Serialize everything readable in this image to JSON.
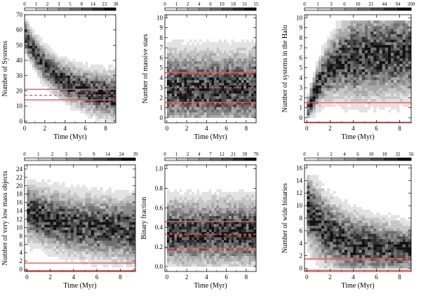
{
  "figure": {
    "type": "heatmap-panels",
    "rows": 2,
    "cols": 3
  },
  "chart_data": [
    {
      "type": "heatmap",
      "xlabel": "Time (Myr)",
      "ylabel": "Number of Systems",
      "xlim": [
        0,
        9
      ],
      "ylim": [
        -1,
        70
      ],
      "xticks": [
        "0",
        "2",
        "4",
        "6",
        "8"
      ],
      "yticks": [
        "0",
        "10",
        "20",
        "30",
        "40",
        "50",
        "60",
        "70"
      ],
      "ytick_values": [
        0,
        10,
        20,
        30,
        40,
        50,
        60,
        70
      ],
      "colorbar_ticks": [
        "0",
        "1",
        "2",
        "3",
        "5",
        "8",
        "14",
        "23",
        "38"
      ],
      "ref_lines": [
        {
          "y": 21,
          "style": "solid"
        },
        {
          "y": 17,
          "style": "dashed"
        },
        {
          "y": 14,
          "style": "solid"
        }
      ],
      "density": {
        "kind": "decay",
        "start": 57,
        "end": 14,
        "tau": 3.2,
        "spread_start": 6,
        "spread_end": 9,
        "ymin": 0,
        "ymax": 67
      }
    },
    {
      "type": "heatmap",
      "xlabel": "Time (Myr)",
      "ylabel": "Number of massive stars",
      "xlim": [
        -0.2,
        9
      ],
      "ylim": [
        -0.5,
        10.3
      ],
      "xticks": [
        "0",
        "2",
        "4",
        "6",
        "8"
      ],
      "yticks": [
        "0",
        "1",
        "2",
        "3",
        "4",
        "5",
        "6",
        "7",
        "8",
        "9",
        "10"
      ],
      "ytick_values": [
        0,
        1,
        2,
        3,
        4,
        5,
        6,
        7,
        8,
        9,
        10
      ],
      "colorbar_ticks": [
        "0",
        "1",
        "2",
        "4",
        "6",
        "10",
        "18",
        "31",
        "55"
      ],
      "ref_lines": [
        {
          "y": 4.5,
          "style": "solid"
        },
        {
          "y": 3.0,
          "style": "dashed"
        },
        {
          "y": 1.5,
          "style": "solid"
        }
      ],
      "density": {
        "kind": "band",
        "center": 3.0,
        "spread": 2.2,
        "ymin": 0,
        "ymax": 9.6
      }
    },
    {
      "type": "heatmap",
      "xlabel": "Time (Myr)",
      "ylabel": "Number of systems in the Halo",
      "xlim": [
        -0.2,
        9
      ],
      "ylim": [
        -0.5,
        10.3
      ],
      "xticks": [
        "0",
        "2",
        "4",
        "6",
        "8"
      ],
      "yticks": [
        "0",
        "1",
        "2",
        "3",
        "4",
        "5",
        "6",
        "7",
        "8",
        "9",
        "10"
      ],
      "ytick_values": [
        0,
        1,
        2,
        3,
        4,
        5,
        6,
        7,
        8,
        9,
        10
      ],
      "colorbar_ticks": [
        "0",
        "1",
        "3",
        "6",
        "10",
        "21",
        "44",
        "94",
        "200"
      ],
      "ref_lines": [
        {
          "y": 1.5,
          "style": "solid"
        },
        {
          "y": -0.45,
          "style": "solid"
        }
      ],
      "density": {
        "kind": "rise",
        "start": 0.3,
        "end": 6.5,
        "tau": 1.5,
        "spread_start": 0.8,
        "spread_end": 2.6,
        "ymin": 0,
        "ymax": 9.6
      }
    },
    {
      "type": "heatmap",
      "xlabel": "Time (Myr)",
      "ylabel": "Number of very low mass objects",
      "xlim": [
        -0.2,
        9.3
      ],
      "ylim": [
        -0.5,
        25
      ],
      "xticks": [
        "0",
        "2",
        "4",
        "6",
        "8"
      ],
      "yticks": [
        "0",
        "2",
        "4",
        "6",
        "8",
        "10",
        "12",
        "14",
        "16",
        "18",
        "20",
        "22",
        "24"
      ],
      "ytick_values": [
        0,
        2,
        4,
        6,
        8,
        10,
        12,
        14,
        16,
        18,
        20,
        22,
        24
      ],
      "colorbar_ticks": [
        "0",
        "1",
        "2",
        "3",
        "5",
        "9",
        "14",
        "24",
        "39"
      ],
      "ref_lines": [
        {
          "y": 1.5,
          "style": "solid"
        },
        {
          "y": -0.3,
          "style": "solid"
        }
      ],
      "density": {
        "kind": "decay",
        "start": 14,
        "end": 9,
        "tau": 4.0,
        "spread_start": 4,
        "spread_end": 4.5,
        "ymin": 0.5,
        "ymax": 21.5
      }
    },
    {
      "type": "heatmap",
      "xlabel": "Time (Myr)",
      "ylabel": "Binary fraction",
      "xlim": [
        -0.2,
        9.0
      ],
      "ylim": [
        -0.05,
        1.04
      ],
      "xticks": [
        "0",
        "2",
        "4",
        "6",
        "8"
      ],
      "yticks": [
        "0.0",
        "0.2",
        "0.4",
        "0.6",
        "0.8",
        "1.0"
      ],
      "ytick_values": [
        0.0,
        0.2,
        0.4,
        0.6,
        0.8,
        1.0
      ],
      "colorbar_ticks": [
        "0",
        "1",
        "2",
        "4",
        "7",
        "12",
        "21",
        "39",
        "70"
      ],
      "ref_lines": [
        {
          "y": 0.46,
          "style": "solid"
        },
        {
          "y": 0.33,
          "style": "dashed"
        },
        {
          "y": 0.19,
          "style": "solid"
        }
      ],
      "density": {
        "kind": "band",
        "center": 0.35,
        "spread": 0.2,
        "ymin": 0.0,
        "ymax": 0.86
      }
    },
    {
      "type": "heatmap",
      "xlabel": "Time (Myr)",
      "ylabel": "Number of wide binaries",
      "xlim": [
        -0.2,
        9.0
      ],
      "ylim": [
        -0.5,
        16.5
      ],
      "xticks": [
        "0",
        "2",
        "4",
        "6",
        "8"
      ],
      "yticks": [
        "0",
        "2",
        "4",
        "6",
        "8",
        "10",
        "12",
        "14",
        "16"
      ],
      "ytick_values": [
        0,
        2,
        4,
        6,
        8,
        10,
        12,
        14,
        16
      ],
      "colorbar_ticks": [
        "0",
        "1",
        "2",
        "4",
        "6",
        "10",
        "18",
        "32",
        "56"
      ],
      "ref_lines": [
        {
          "y": 1.5,
          "style": "solid"
        },
        {
          "y": -0.3,
          "style": "solid"
        }
      ],
      "density": {
        "kind": "decay",
        "start": 10,
        "end": 3,
        "tau": 2.0,
        "spread_start": 3.5,
        "spread_end": 2.2,
        "ymin": 0,
        "ymax": 14.5
      }
    }
  ],
  "colors": {
    "reference_line": "#e8585a",
    "axis": "#000000",
    "background": "#ffffff"
  }
}
